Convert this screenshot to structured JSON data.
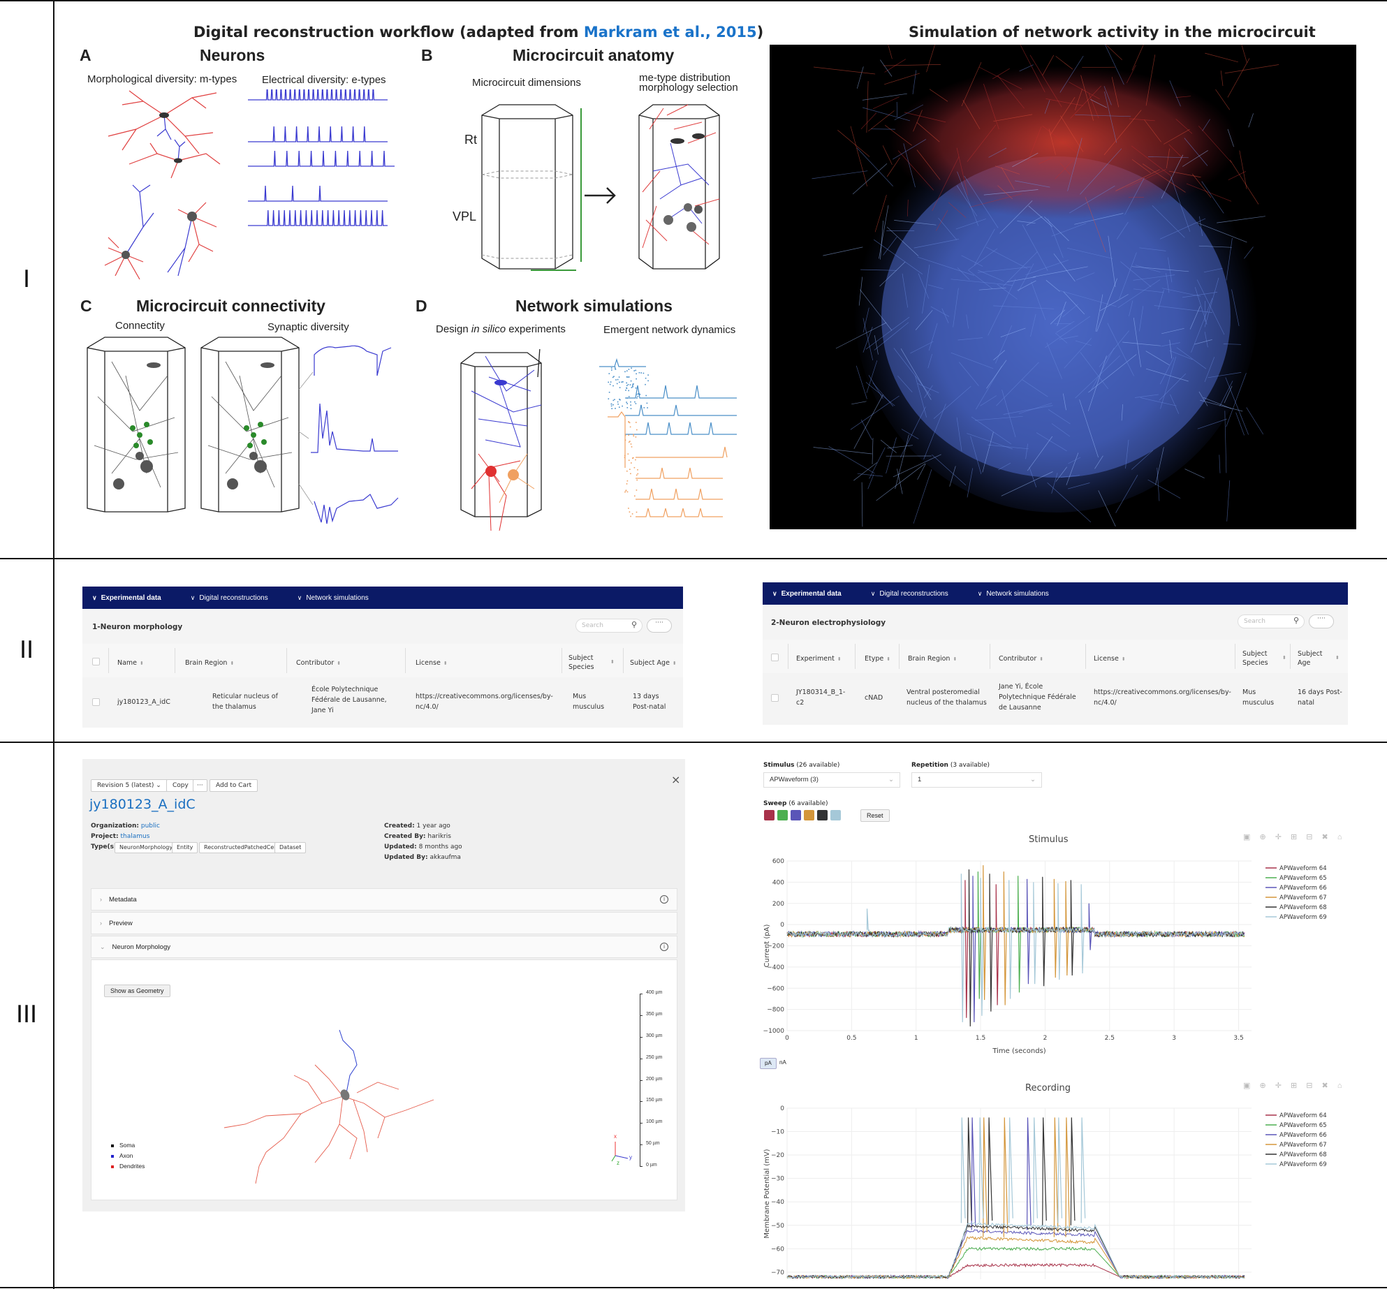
{
  "rows": {
    "r1": "I",
    "r2": "II",
    "r3": "III"
  },
  "panel1": {
    "workflow_title_prefix": "Digital reconstruction workflow (adapted from ",
    "workflow_title_link": "Markram et al., 2015",
    "workflow_title_suffix": ")",
    "sim_title": "Simulation of network activity in the microcircuit",
    "A": {
      "letter": "A",
      "title": "Neurons",
      "left_label": "Morphological diversity: m-types",
      "right_label": "Electrical diversity: e-types"
    },
    "B": {
      "letter": "B",
      "title": "Microcircuit anatomy",
      "left_label": "Microcircuit dimensions",
      "right_label_1": "me-type distribution",
      "right_label_2": "morphology selection",
      "rt": "Rt",
      "vpl": "VPL"
    },
    "C": {
      "letter": "C",
      "title": "Microcircuit connectivity",
      "left_label": "Connectity",
      "right_label": "Synaptic diversity"
    },
    "D": {
      "letter": "D",
      "title": "Network simulations",
      "left_label_pre": "Design ",
      "left_label_em": "in silico",
      "left_label_post": " experiments",
      "right_label": "Emergent network dynamics"
    }
  },
  "table_left": {
    "tabs": [
      "Experimental data",
      "Digital reconstructions",
      "Network simulations"
    ],
    "caption": "1-Neuron morphology",
    "search_placeholder": "Search",
    "more": "····",
    "headers": [
      "Name",
      "Brain Region",
      "Contributor",
      "License",
      "Subject Species",
      "Subject Age"
    ],
    "row": [
      "jy180123_A_idC",
      "Reticular nucleus of the thalamus",
      "École Polytechnique Fédérale de Lausanne, Jane Yi",
      "https://creativecommons.org/licenses/by-nc/4.0/",
      "Mus musculus",
      "13 days Post-natal"
    ]
  },
  "table_right": {
    "tabs": [
      "Experimental data",
      "Digital reconstructions",
      "Network simulations"
    ],
    "caption": "2-Neuron electrophysiology",
    "search_placeholder": "Search",
    "more": "····",
    "headers": [
      "Experiment",
      "Etype",
      "Brain Region",
      "Contributor",
      "License",
      "Subject Species",
      "Subject Age"
    ],
    "row": [
      "JY180314_B_1-c2",
      "cNAD",
      "Ventral posteromedial nucleus of the thalamus",
      "Jane Yi, École Polytechnique Fédérale de Lausanne",
      "https://creativecommons.org/licenses/by-nc/4.0/",
      "Mus musculus",
      "16 days Post-natal"
    ]
  },
  "resource": {
    "revision": "Revision 5 (latest)",
    "copy": "Copy",
    "dots": "···",
    "add_to_cart": "Add to Cart",
    "close": "×",
    "name": "jy180123_A_idC",
    "organization_label": "Organization:",
    "organization": "public",
    "project_label": "Project:",
    "project": "thalamus",
    "types_label": "Type(s):",
    "types": [
      "NeuronMorphology",
      "Entity",
      "ReconstructedPatchedCell",
      "Dataset"
    ],
    "created_label": "Created:",
    "created": "1 year ago",
    "created_by_label": "Created By:",
    "created_by": "harikris",
    "updated_label": "Updated:",
    "updated": "8 months ago",
    "updated_by_label": "Updated By:",
    "updated_by": "akkaufma",
    "sections": [
      "Metadata",
      "Preview",
      "Neuron Morphology"
    ],
    "show_geometry": "Show as Geometry",
    "legend": [
      {
        "label": "Soma",
        "color": "#111111"
      },
      {
        "label": "Axon",
        "color": "#2222cc"
      },
      {
        "label": "Dendrites",
        "color": "#dd2222"
      }
    ],
    "scale_labels": [
      "400 µm",
      "350 µm",
      "300 µm",
      "250 µm",
      "200 µm",
      "150 µm",
      "100 µm",
      "50 µm",
      "0 µm"
    ],
    "axis_labels": {
      "x": "x",
      "y": "y",
      "z": "z"
    }
  },
  "ephys": {
    "stimulus_label": "Stimulus",
    "stimulus_count": "(26 available)",
    "stimulus_value": "APWaveform (3)",
    "repetition_label": "Repetition",
    "repetition_count": "(3 available)",
    "repetition_value": "1",
    "sweep_label": "Sweep",
    "sweep_count": "(6 available)",
    "sweep_colors": [
      "#a8324a",
      "#4caf50",
      "#5a55b8",
      "#d4963a",
      "#333333",
      "#a5c8d8"
    ],
    "reset": "Reset",
    "unit_buttons": [
      "pA",
      "nA"
    ],
    "modebar": "▣ ⊕ ✛ ⊞ ⊟ ✖ ⌂"
  },
  "chart_data": [
    {
      "type": "line",
      "title": "Stimulus",
      "xlabel": "Time (seconds)",
      "ylabel": "Current (pA)",
      "xlim": [
        0,
        3.6
      ],
      "ylim": [
        -1000,
        600
      ],
      "x_ticks": [
        "0",
        "0.5",
        "1",
        "1.5",
        "2",
        "2.5",
        "3",
        "3.5"
      ],
      "y_ticks": [
        "600",
        "400",
        "200",
        "0",
        "−200",
        "−400",
        "−600",
        "−800",
        "−1000"
      ],
      "series": [
        {
          "name": "APWaveform 64",
          "color": "#a8324a",
          "base": -90,
          "step": 40,
          "spikes": [
            [
              1.38,
              420,
              -880
            ],
            [
              1.62,
              380,
              -760
            ]
          ]
        },
        {
          "name": "APWaveform 65",
          "color": "#4caf50",
          "base": -90,
          "step": 40,
          "spikes": [
            [
              1.48,
              500,
              -700
            ],
            [
              1.79,
              460,
              -640
            ]
          ]
        },
        {
          "name": "APWaveform 66",
          "color": "#5a55b8",
          "base": -90,
          "step": 40,
          "spikes": [
            [
              1.44,
              460,
              -920
            ],
            [
              1.86,
              430,
              -560
            ],
            [
              2.34,
              200,
              -240
            ]
          ]
        },
        {
          "name": "APWaveform 67",
          "color": "#d4963a",
          "base": -90,
          "step": 40,
          "spikes": [
            [
              1.52,
              560,
              -710
            ],
            [
              1.68,
              500,
              -760
            ],
            [
              2.07,
              430,
              -500
            ],
            [
              2.16,
              410,
              -480
            ]
          ]
        },
        {
          "name": "APWaveform 68",
          "color": "#333333",
          "base": -90,
          "step": 40,
          "spikes": [
            [
              1.41,
              520,
              -960
            ],
            [
              1.57,
              480,
              -820
            ],
            [
              1.98,
              450,
              -580
            ],
            [
              2.2,
              420,
              -480
            ]
          ]
        },
        {
          "name": "APWaveform 69",
          "color": "#a5c8d8",
          "base": -90,
          "step": 40,
          "spikes": [
            [
              0.62,
              150,
              -60
            ],
            [
              1.35,
              480,
              -920
            ],
            [
              1.5,
              440,
              -860
            ],
            [
              1.72,
              420,
              -700
            ],
            [
              1.91,
              400,
              -560
            ],
            [
              2.1,
              390,
              -520
            ],
            [
              2.28,
              380,
              -460
            ]
          ]
        }
      ],
      "step_x": [
        1.25,
        2.38
      ]
    },
    {
      "type": "line",
      "title": "Recording",
      "xlabel": "",
      "ylabel": "Membrane Potential (mV)",
      "xlim": [
        0,
        3.6
      ],
      "ylim": [
        -73,
        0
      ],
      "y_ticks": [
        "0",
        "−10",
        "−20",
        "−30",
        "−40",
        "−50",
        "−60",
        "−70"
      ],
      "series": [
        {
          "name": "APWaveform 64",
          "color": "#a8324a",
          "rest": -72,
          "plateau": -67,
          "spikes": []
        },
        {
          "name": "APWaveform 65",
          "color": "#4caf50",
          "rest": -72,
          "plateau": -60,
          "spikes": []
        },
        {
          "name": "APWaveform 66",
          "color": "#5a55b8",
          "rest": -72,
          "plateau": -52,
          "spikes": [
            1.43,
            1.86
          ]
        },
        {
          "name": "APWaveform 67",
          "color": "#d4963a",
          "rest": -72,
          "plateau": -55,
          "spikes": [
            1.52,
            1.68,
            2.07,
            2.16
          ]
        },
        {
          "name": "APWaveform 68",
          "color": "#333333",
          "rest": -72,
          "plateau": -50,
          "spikes": [
            1.4,
            1.56,
            1.98,
            2.2
          ]
        },
        {
          "name": "APWaveform 69",
          "color": "#a5c8d8",
          "rest": -72,
          "plateau": -49,
          "spikes": [
            1.35,
            1.49,
            1.72,
            1.91,
            2.1,
            2.28
          ]
        }
      ],
      "step_x": [
        1.25,
        2.38
      ]
    }
  ]
}
